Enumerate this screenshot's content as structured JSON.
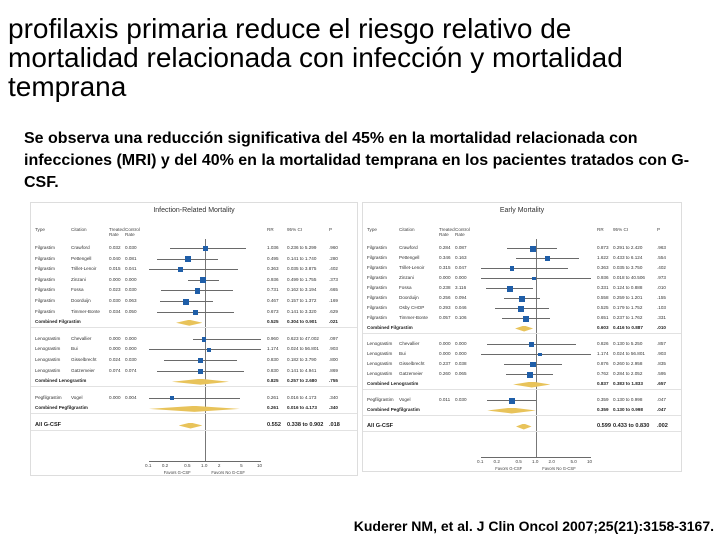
{
  "title": "profilaxis primaria reduce el riesgo relativo de mortalidad relacionada con infección y mortalidad temprana",
  "subtitle": "Se observa una reducción significativa del 45% en la mortalidad relacionada con infecciones  (MRI) y del 40% en la mortalidad temprana en los pacientes tratados con G-CSF.",
  "citation": "Kuderer NM, et al. J Clin Oncol 2007;25(21):3158-3167.",
  "colors": {
    "square": "#1f5ea8",
    "diamond": "#e8c35a"
  },
  "chart_data": [
    {
      "type": "forest",
      "title": "Infection-Related Mortality",
      "columns": [
        "Type",
        "Citation",
        "Treated Rate",
        "Control Rate",
        "RR",
        "95% CI",
        "P"
      ],
      "xscale": "log",
      "xlim": [
        0.1,
        10
      ],
      "ticks": [
        "0.1",
        "0.2",
        "0.5",
        "1.0",
        "2",
        "5",
        "10"
      ],
      "favors_left": "Favors G-CSF",
      "favors_right": "Favors No G-CSF",
      "rows": [
        {
          "kind": "study",
          "type": "Filgrastim",
          "citation": "Crawford",
          "treated": "0.032",
          "control": "0.030",
          "rr": 1.036,
          "rr_label": "1.036",
          "lo": 0.236,
          "hi": 5.299,
          "ci": "0.236 to 5.299",
          "p": ".960"
        },
        {
          "kind": "study",
          "type": "Filgrastim",
          "citation": "Pettengell",
          "treated": "0.040",
          "control": "0.081",
          "rr": 0.495,
          "rr_label": "0.495",
          "lo": 0.141,
          "hi": 1.74,
          "ci": "0.141 to 1.740",
          "p": ".280"
        },
        {
          "kind": "study",
          "type": "Filgrastim",
          "citation": "Trillet-Lenoir",
          "treated": "0.015",
          "control": "0.041",
          "rr": 0.363,
          "rr_label": "0.363",
          "lo": 0.035,
          "hi": 3.875,
          "ci": "0.035 to 3.875",
          "p": ".402"
        },
        {
          "kind": "study",
          "type": "Filgrastim",
          "citation": "Zinzani",
          "treated": "0.000",
          "control": "0.000",
          "rr": 0.936,
          "rr_label": "0.936",
          "lo": 0.499,
          "hi": 1.755,
          "ci": "0.499 to 1.755",
          "p": ".373"
        },
        {
          "kind": "study",
          "type": "Filgrastim",
          "citation": "Fossa",
          "treated": "0.023",
          "control": "0.030",
          "rr": 0.731,
          "rr_label": "0.731",
          "lo": 0.162,
          "hi": 3.194,
          "ci": "0.162 to 3.194",
          "p": ".665"
        },
        {
          "kind": "study",
          "type": "Filgrastim",
          "citation": "Doorduijn",
          "treated": "0.030",
          "control": "0.063",
          "rr": 0.467,
          "rr_label": "0.467",
          "lo": 0.157,
          "hi": 1.372,
          "ci": "0.157 to 1.372",
          "p": ".169"
        },
        {
          "kind": "study",
          "type": "Filgrastim",
          "citation": "Timmer-Bonte",
          "treated": "0.034",
          "control": "0.050",
          "rr": 0.673,
          "rr_label": "0.673",
          "lo": 0.141,
          "hi": 3.32,
          "ci": "0.141 to 3.320",
          "p": ".629"
        },
        {
          "kind": "combined",
          "label": "Combined Filgrastim",
          "rr": 0.525,
          "rr_label": "0.525",
          "lo": 0.304,
          "hi": 0.901,
          "ci": "0.304 to 0.901",
          "p": ".021"
        },
        {
          "kind": "study",
          "type": "Lenograstim",
          "citation": "Chevallier",
          "treated": "0.000",
          "control": "0.000",
          "rr": 0.96,
          "rr_label": "0.960",
          "lo": 0.623,
          "hi": 47.002,
          "ci": "0.623 to 47.002",
          "p": ".097"
        },
        {
          "kind": "study",
          "type": "Lenograstim",
          "citation": "Bui",
          "treated": "0.000",
          "control": "0.000",
          "rr": 1.174,
          "rr_label": "1.174",
          "lo": 0.024,
          "hi": 56.801,
          "ci": "0.024 to 56.801",
          "p": ".903"
        },
        {
          "kind": "study",
          "type": "Lenograstim",
          "citation": "Gisselbrecht",
          "treated": "0.024",
          "control": "0.030",
          "rr": 0.83,
          "rr_label": "0.830",
          "lo": 0.182,
          "hi": 3.79,
          "ci": "0.182 to 3.790",
          "p": ".800"
        },
        {
          "kind": "study",
          "type": "Lenograstim",
          "citation": "Gatzemeier",
          "treated": "0.074",
          "control": "0.074",
          "rr": 0.83,
          "rr_label": "0.830",
          "lo": 0.141,
          "hi": 4.941,
          "ci": "0.141 to 4.941",
          "p": ".869"
        },
        {
          "kind": "combined",
          "label": "Combined Lenograstim",
          "rr": 0.825,
          "rr_label": "0.825",
          "lo": 0.257,
          "hi": 2.68,
          "ci": "0.257 to 2.680",
          "p": ".755"
        },
        {
          "kind": "study",
          "type": "Pegfilgrastim",
          "citation": "Vogel",
          "treated": "0.000",
          "control": "0.004",
          "rr": 0.261,
          "rr_label": "0.261",
          "lo": 0.016,
          "hi": 4.173,
          "ci": "0.016 to 4.173",
          "p": ".340"
        },
        {
          "kind": "combined",
          "label": "Combined Pegfilgrastim",
          "rr": 0.261,
          "rr_label": "0.261",
          "lo": 0.016,
          "hi": 4.173,
          "ci": "0.016 to 4.173",
          "p": ".340"
        },
        {
          "kind": "all",
          "label": "All G-CSF",
          "rr": 0.552,
          "rr_label": "0.552",
          "lo": 0.338,
          "hi": 0.902,
          "ci": "0.338 to 0.902",
          "p": ".018"
        }
      ]
    },
    {
      "type": "forest",
      "title": "Early Mortality",
      "columns": [
        "Type",
        "Citation",
        "Treated Rate",
        "Control Rate",
        "RR",
        "95% CI",
        "P"
      ],
      "xscale": "log",
      "xlim": [
        0.1,
        10
      ],
      "ticks": [
        "0.1",
        "0.2",
        "0.5",
        "1.0",
        "2.0",
        "5.0",
        "10"
      ],
      "favors_left": "Favors G-CSF",
      "favors_right": "Favors No G-CSF",
      "rows": [
        {
          "kind": "study",
          "type": "Filgrastim",
          "citation": "Crawford",
          "treated": "0.284",
          "control": "0.087",
          "rr": 0.873,
          "rr_label": "0.873",
          "lo": 0.291,
          "hi": 2.42,
          "ci": "0.291 to 2.420",
          "p": ".963"
        },
        {
          "kind": "study",
          "type": "Filgrastim",
          "citation": "Pettengell",
          "treated": "0.346",
          "control": "0.163",
          "rr": 1.622,
          "rr_label": "1.622",
          "lo": 0.433,
          "hi": 6.124,
          "ci": "0.433 to 6.124",
          "p": ".554"
        },
        {
          "kind": "study",
          "type": "Filgrastim",
          "citation": "Trillet-Lenoir",
          "treated": "0.315",
          "control": "0.047",
          "rr": 0.363,
          "rr_label": "0.363",
          "lo": 0.035,
          "hi": 3.75,
          "ci": "0.035 to 3.750",
          "p": ".402"
        },
        {
          "kind": "study",
          "type": "Filgrastim",
          "citation": "Zinzani",
          "treated": "0.000",
          "control": "0.000",
          "rr": 0.936,
          "rr_label": "0.936",
          "lo": 0.018,
          "hi": 40.506,
          "ci": "0.018 to 40.506",
          "p": ".973"
        },
        {
          "kind": "study",
          "type": "Filgrastim",
          "citation": "Fossa",
          "treated": "0.238",
          "control": "3.116",
          "rr": 0.331,
          "rr_label": "0.331",
          "lo": 0.124,
          "hi": 0.888,
          "ci": "0.124 to 0.888",
          "p": ".010"
        },
        {
          "kind": "study",
          "type": "Filgrastim",
          "citation": "Doorduijn",
          "treated": "0.256",
          "control": "0.094",
          "rr": 0.558,
          "rr_label": "0.558",
          "lo": 0.259,
          "hi": 1.201,
          "ci": "0.259 to 1.201",
          "p": ".155"
        },
        {
          "kind": "study",
          "type": "Filgrastim",
          "citation": "Osby CHOP",
          "treated": "0.293",
          "control": "0.046",
          "rr": 0.525,
          "rr_label": "0.525",
          "lo": 0.179,
          "hi": 1.752,
          "ci": "0.179 to 1.752",
          "p": ".103"
        },
        {
          "kind": "study",
          "type": "Filgrastim",
          "citation": "Timmer-Bonte",
          "treated": "0.057",
          "control": "0.106",
          "rr": 0.651,
          "rr_label": "0.651",
          "lo": 0.237,
          "hi": 1.762,
          "ci": "0.237 to 1.762",
          "p": ".331"
        },
        {
          "kind": "combined",
          "label": "Combined Filgrastim",
          "rr": 0.603,
          "rr_label": "0.603",
          "lo": 0.416,
          "hi": 0.887,
          "ci": "0.416 to 0.887",
          "p": ".010"
        },
        {
          "kind": "study",
          "type": "Lenograstim",
          "citation": "Chevallier",
          "treated": "0.000",
          "control": "0.000",
          "rr": 0.826,
          "rr_label": "0.826",
          "lo": 0.13,
          "hi": 5.25,
          "ci": "0.130 to 5.250",
          "p": ".857"
        },
        {
          "kind": "study",
          "type": "Lenograstim",
          "citation": "Bui",
          "treated": "0.000",
          "control": "0.000",
          "rr": 1.174,
          "rr_label": "1.174",
          "lo": 0.024,
          "hi": 56.801,
          "ci": "0.024 to 56.801",
          "p": ".903"
        },
        {
          "kind": "study",
          "type": "Lenograstim",
          "citation": "Gisselbrecht",
          "treated": "0.237",
          "control": "0.038",
          "rr": 0.876,
          "rr_label": "0.876",
          "lo": 0.26,
          "hi": 2.958,
          "ci": "0.260 to 2.958",
          "p": ".835"
        },
        {
          "kind": "study",
          "type": "Lenograstim",
          "citation": "Gatzemeier",
          "treated": "0.260",
          "control": "0.065",
          "rr": 0.762,
          "rr_label": "0.762",
          "lo": 0.284,
          "hi": 2.052,
          "ci": "0.284 to 2.052",
          "p": ".595"
        },
        {
          "kind": "combined",
          "label": "Combined Lenograstim",
          "rr": 0.837,
          "rr_label": "0.837",
          "lo": 0.383,
          "hi": 1.833,
          "ci": "0.383 to 1.833",
          "p": ".657"
        },
        {
          "kind": "study",
          "type": "Pegfilgrastim",
          "citation": "Vogel",
          "treated": "0.011",
          "control": "0.030",
          "rr": 0.359,
          "rr_label": "0.359",
          "lo": 0.13,
          "hi": 0.998,
          "ci": "0.130 to 0.998",
          "p": ".047"
        },
        {
          "kind": "combined",
          "label": "Combined Pegfilgrastim",
          "rr": 0.359,
          "rr_label": "0.359",
          "lo": 0.13,
          "hi": 0.998,
          "ci": "0.130 to 0.998",
          "p": ".047"
        },
        {
          "kind": "all",
          "label": "All G-CSF",
          "rr": 0.599,
          "rr_label": "0.599",
          "lo": 0.433,
          "hi": 0.83,
          "ci": "0.433 to 0.830",
          "p": ".002"
        }
      ]
    }
  ]
}
